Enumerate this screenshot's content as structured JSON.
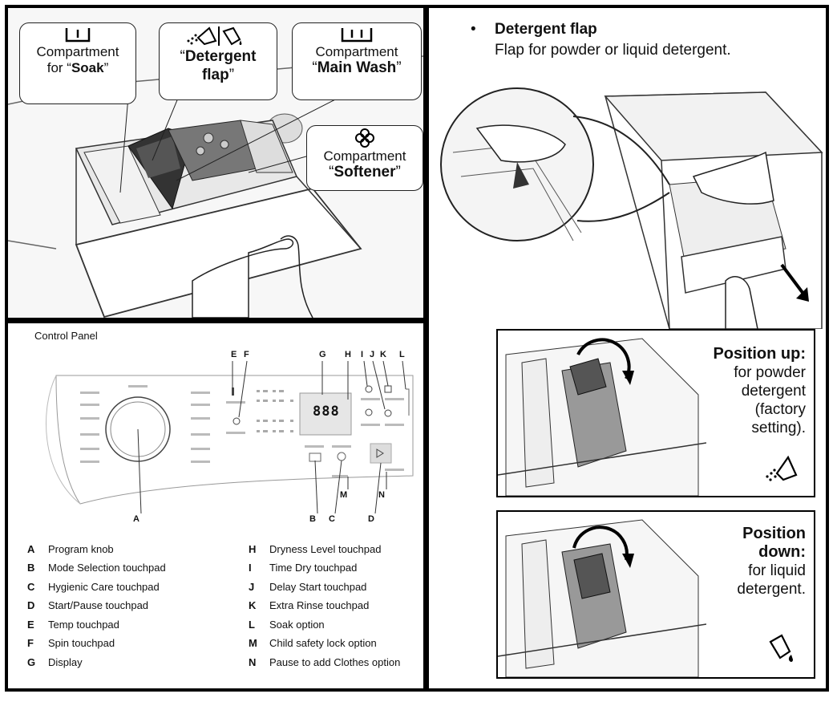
{
  "soak": {
    "line1": "Compartment",
    "line2_pre": "for “",
    "line2_bold": "Soak",
    "line2_post": "”"
  },
  "detergent": {
    "q_open": "“",
    "bold1": "Detergent",
    "bold2": "flap",
    "q_close": "”"
  },
  "mainwash": {
    "line1": "Compartment",
    "q_open": "“",
    "bold": "Main Wash",
    "q_close": "”"
  },
  "softener": {
    "line1": "Compartment",
    "q_open": "“",
    "bold": "Softener",
    "q_close": "”"
  },
  "flap_section": {
    "bullet": "•",
    "heading": "Detergent flap",
    "text": "Flap for powder or liquid detergent."
  },
  "position_up": {
    "title": "Position up:",
    "l1": "for powder",
    "l2": "detergent",
    "l3": "(factory",
    "l4": "setting)."
  },
  "position_down": {
    "title1": "Position",
    "title2": "down:",
    "l1": "for liquid",
    "l2": "detergent."
  },
  "control_panel": {
    "title": "Control Panel",
    "display_digits": "888",
    "letters_top": [
      "E",
      "F",
      "G",
      "H",
      "I",
      "J",
      "K",
      "L"
    ],
    "letters_bottom": [
      "A",
      "B",
      "C",
      "D",
      "M",
      "N"
    ]
  },
  "legend": {
    "left": [
      {
        "k": "A",
        "v": "Program knob"
      },
      {
        "k": "B",
        "v": "Mode Selection touchpad"
      },
      {
        "k": "C",
        "v": "Hygienic Care touchpad"
      },
      {
        "k": "D",
        "v": "Start/Pause touchpad"
      },
      {
        "k": "E",
        "v": "Temp touchpad"
      },
      {
        "k": "F",
        "v": "Spin touchpad"
      },
      {
        "k": "G",
        "v": "Display"
      }
    ],
    "right": [
      {
        "k": "H",
        "v": "Dryness Level touchpad"
      },
      {
        "k": "I",
        "v": "Time Dry touchpad"
      },
      {
        "k": "J",
        "v": "Delay Start touchpad"
      },
      {
        "k": "K",
        "v": "Extra Rinse touchpad"
      },
      {
        "k": "L",
        "v": "Soak option"
      },
      {
        "k": "M",
        "v": "Child safety lock option"
      },
      {
        "k": "N",
        "v": "Pause to add Clothes option"
      }
    ]
  }
}
